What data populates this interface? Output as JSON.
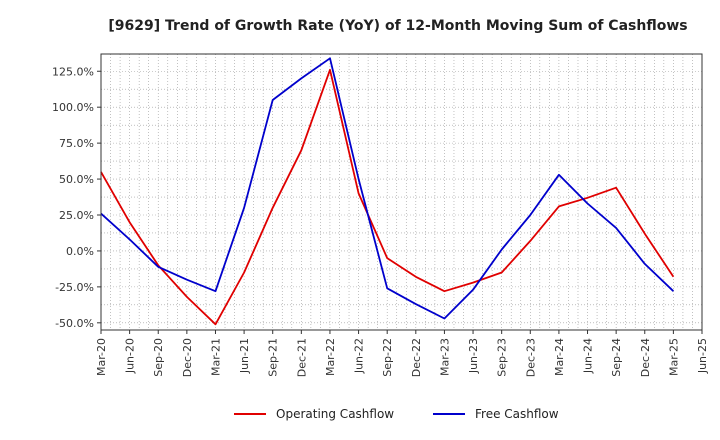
{
  "chart_data": {
    "type": "line",
    "title": "[9629]  Trend of Growth Rate (YoY) of 12-Month Moving Sum of Cashflows",
    "xlabel": "",
    "ylabel": "",
    "x_ticks": [
      "Mar-20",
      "Jun-20",
      "Sep-20",
      "Dec-20",
      "Mar-21",
      "Jun-21",
      "Sep-21",
      "Dec-21",
      "Mar-22",
      "Jun-22",
      "Sep-22",
      "Dec-22",
      "Mar-23",
      "Jun-23",
      "Sep-23",
      "Dec-23",
      "Mar-24",
      "Jun-24",
      "Sep-24",
      "Dec-24",
      "Mar-25",
      "Jun-25"
    ],
    "y_ticks": [
      -50,
      -25,
      0,
      25,
      50,
      75,
      100,
      125
    ],
    "y_tick_labels": [
      "-50.0%",
      "-25.0%",
      "0.0%",
      "25.0%",
      "50.0%",
      "75.0%",
      "100.0%",
      "125.0%"
    ],
    "ylim": [
      -55,
      137
    ],
    "grid": true,
    "legend_position": "bottom-center",
    "series": [
      {
        "name": "Operating Cashflow",
        "color": "#e00000",
        "x": [
          "Mar-20",
          "Jun-20",
          "Sep-20",
          "Dec-20",
          "Mar-21",
          "Jun-21",
          "Sep-21",
          "Dec-21",
          "Mar-22",
          "Jun-22",
          "Sep-22",
          "Dec-22",
          "Mar-23",
          "Jun-23",
          "Sep-23",
          "Dec-23",
          "Mar-24",
          "Jun-24",
          "Sep-24",
          "Dec-24",
          "Mar-25"
        ],
        "values": [
          55,
          20,
          -10,
          -32,
          -51,
          -15,
          30,
          70,
          126,
          40,
          -5,
          -18,
          -28,
          -22,
          -15,
          7,
          31,
          37,
          44,
          12,
          -18
        ]
      },
      {
        "name": "Free Cashflow",
        "color": "#0000cc",
        "x": [
          "Mar-20",
          "Jun-20",
          "Sep-20",
          "Dec-20",
          "Mar-21",
          "Jun-21",
          "Sep-21",
          "Dec-21",
          "Mar-22",
          "Jun-22",
          "Sep-22",
          "Dec-22",
          "Mar-23",
          "Jun-23",
          "Sep-23",
          "Dec-23",
          "Mar-24",
          "Jun-24",
          "Sep-24",
          "Dec-24",
          "Mar-25"
        ],
        "values": [
          26,
          8,
          -11,
          -20,
          -28,
          30,
          105,
          120,
          134,
          50,
          -26,
          -37,
          -47,
          -27,
          1,
          25,
          53,
          33,
          16,
          -9,
          -28
        ]
      }
    ]
  }
}
